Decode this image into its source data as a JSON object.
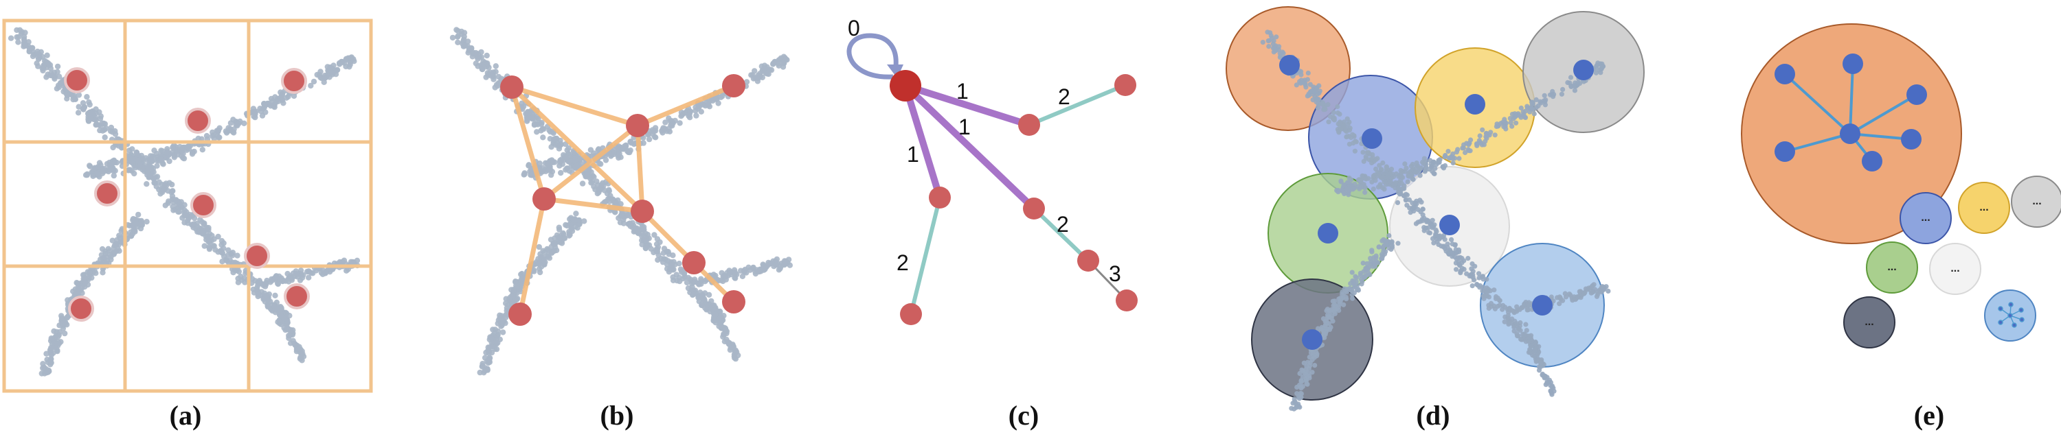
{
  "panels": [
    {
      "id": "a",
      "caption": "(a)"
    },
    {
      "id": "b",
      "caption": "(b)"
    },
    {
      "id": "c",
      "caption": "(c)"
    },
    {
      "id": "d",
      "caption": "(d)"
    },
    {
      "id": "e",
      "caption": "(e)"
    }
  ],
  "panel_c": {
    "hop_labels": [
      "0",
      "1",
      "1",
      "1",
      "2",
      "2",
      "2",
      "3"
    ]
  },
  "panel_e": {
    "ellipsis": "..."
  },
  "colors": {
    "points": "#a9b6c6",
    "sample_node": "#cd5f5f",
    "center_node": "#c0302c",
    "grid_lines": "#f2c48d",
    "edges_b": "#f3b97a",
    "hop1_edge": "#a774c8",
    "hop2_edge": "#8fcac4",
    "hop3_edge": "#888888",
    "self_loop": "#8b96c9",
    "cluster_node": "#4a6cc3",
    "star_edge": "#4d9ad0",
    "regions": [
      "#eea87a",
      "#8da4de",
      "#f6d36c",
      "#c6c6c6",
      "#a9cf8e",
      "#ededed",
      "#6c7384",
      "#a6c6ea"
    ]
  }
}
